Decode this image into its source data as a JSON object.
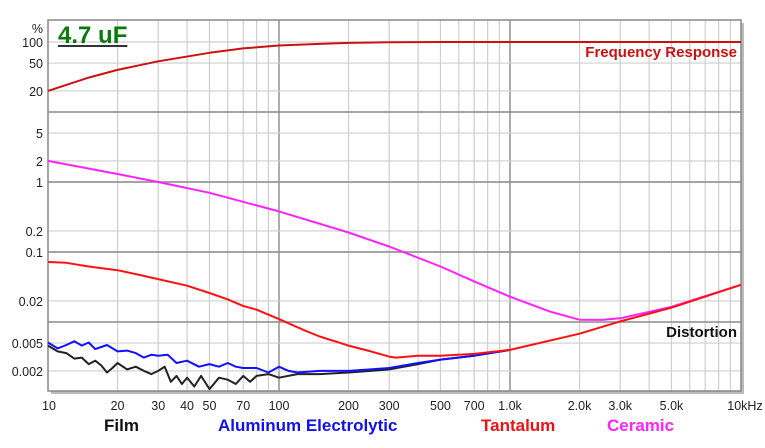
{
  "chart_data": {
    "type": "line",
    "title": "4.7 uF",
    "xlabel": "",
    "ylabel": "%",
    "x_scale": "log",
    "y_scale": "log",
    "xlim": [
      10,
      10000
    ],
    "ylim": [
      0.001,
      200
    ],
    "grid": true,
    "x_ticks": [
      {
        "v": 10,
        "label": "10"
      },
      {
        "v": 20,
        "label": "20"
      },
      {
        "v": 30,
        "label": "30"
      },
      {
        "v": 40,
        "label": "40"
      },
      {
        "v": 50,
        "label": "50"
      },
      {
        "v": 70,
        "label": "70"
      },
      {
        "v": 100,
        "label": "100"
      },
      {
        "v": 200,
        "label": "200"
      },
      {
        "v": 300,
        "label": "300"
      },
      {
        "v": 500,
        "label": "500"
      },
      {
        "v": 700,
        "label": "700"
      },
      {
        "v": 1000,
        "label": "1.0k"
      },
      {
        "v": 2000,
        "label": "2.0k"
      },
      {
        "v": 3000,
        "label": "3.0k"
      },
      {
        "v": 5000,
        "label": "5.0k"
      },
      {
        "v": 10000,
        "label": "10kHz"
      }
    ],
    "y_ticks": [
      {
        "v": 100,
        "label": "100"
      },
      {
        "v": 50,
        "label": "50"
      },
      {
        "v": 20,
        "label": "20"
      },
      {
        "v": 5,
        "label": "5"
      },
      {
        "v": 2,
        "label": "2"
      },
      {
        "v": 1,
        "label": "1"
      },
      {
        "v": 0.2,
        "label": "0.2"
      },
      {
        "v": 0.1,
        "label": "0.1"
      },
      {
        "v": 0.02,
        "label": "0.02"
      },
      {
        "v": 0.005,
        "label": "0.005"
      },
      {
        "v": 0.002,
        "label": "0.002"
      }
    ],
    "annotations": [
      "Frequency Response",
      "Distortion"
    ],
    "legend_position": "bottom",
    "series": [
      {
        "name": "Frequency Response",
        "color": "#cc1111",
        "x": [
          10,
          15,
          20,
          30,
          50,
          70,
          100,
          150,
          200,
          300,
          500,
          1000,
          10000
        ],
        "y": [
          20,
          31,
          40,
          53,
          70,
          81,
          89,
          94,
          97,
          99,
          100,
          100,
          100
        ]
      },
      {
        "name": "Ceramic",
        "color": "#ff22ff",
        "x": [
          10,
          20,
          30,
          50,
          100,
          200,
          300,
          500,
          700,
          1000,
          1500,
          2000,
          2500,
          3000,
          5000,
          10000
        ],
        "y": [
          2,
          1.3,
          1.0,
          0.7,
          0.38,
          0.19,
          0.12,
          0.062,
          0.038,
          0.023,
          0.014,
          0.0108,
          0.0107,
          0.0113,
          0.0165,
          0.034
        ]
      },
      {
        "name": "Tantalum",
        "color": "#ff1111",
        "x": [
          10,
          12,
          15,
          20,
          25,
          30,
          40,
          50,
          60,
          70,
          80,
          100,
          130,
          150,
          200,
          250,
          300,
          320,
          400,
          500,
          700,
          1000,
          2000,
          3000,
          5000,
          10000
        ],
        "y": [
          0.072,
          0.07,
          0.062,
          0.055,
          0.047,
          0.041,
          0.033,
          0.026,
          0.021,
          0.017,
          0.015,
          0.011,
          0.0075,
          0.0062,
          0.0046,
          0.0038,
          0.0032,
          0.0031,
          0.0033,
          0.0033,
          0.0035,
          0.004,
          0.0068,
          0.0102,
          0.016,
          0.034
        ]
      },
      {
        "name": "Aluminum Electrolytic",
        "color": "#1111ff",
        "x": [
          10,
          11,
          12,
          13,
          14,
          15,
          16,
          17,
          18,
          20,
          22,
          24,
          26,
          28,
          30,
          33,
          36,
          40,
          45,
          50,
          55,
          60,
          65,
          70,
          80,
          90,
          100,
          110,
          120,
          150,
          200,
          250,
          300,
          400,
          500,
          700,
          1000
        ],
        "y": [
          0.0051,
          0.0042,
          0.0047,
          0.0053,
          0.0046,
          0.0051,
          0.0041,
          0.0044,
          0.0047,
          0.0038,
          0.0039,
          0.0036,
          0.0031,
          0.0034,
          0.0033,
          0.0034,
          0.0026,
          0.0028,
          0.0023,
          0.0025,
          0.0023,
          0.0026,
          0.0023,
          0.0022,
          0.0022,
          0.0019,
          0.0023,
          0.002,
          0.0019,
          0.002,
          0.002,
          0.0021,
          0.0022,
          0.0026,
          0.0029,
          0.0033,
          0.004
        ]
      },
      {
        "name": "Film",
        "color": "#222222",
        "x": [
          10,
          11,
          12,
          13,
          14,
          15,
          16,
          17,
          18,
          19,
          20,
          22,
          24,
          26,
          28,
          30,
          32,
          34,
          36,
          38,
          40,
          43,
          46,
          50,
          55,
          60,
          65,
          70,
          75,
          80,
          90,
          100,
          120,
          150,
          200,
          250,
          300,
          400,
          500,
          700,
          1000
        ],
        "y": [
          0.0046,
          0.0038,
          0.0036,
          0.003,
          0.0031,
          0.0025,
          0.0028,
          0.0024,
          0.0019,
          0.0022,
          0.0026,
          0.0021,
          0.0023,
          0.002,
          0.0018,
          0.002,
          0.0023,
          0.0014,
          0.0017,
          0.0013,
          0.0016,
          0.0012,
          0.0017,
          0.0011,
          0.0016,
          0.0015,
          0.0013,
          0.0017,
          0.0014,
          0.0017,
          0.0018,
          0.0016,
          0.0018,
          0.0018,
          0.0019,
          0.002,
          0.0021,
          0.0025,
          0.0029,
          0.0033,
          0.004
        ]
      }
    ]
  },
  "legend": {
    "film": "Film",
    "aluminum": "Aluminum Electrolytic",
    "tantalum": "Tantalum",
    "ceramic": "Ceramic"
  }
}
